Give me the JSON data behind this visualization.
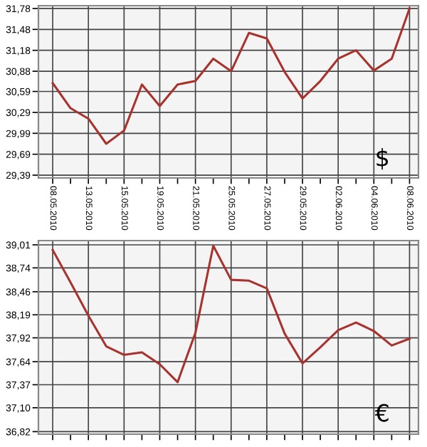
{
  "chart_data": [
    {
      "type": "line",
      "categories": [
        "08.05.2010",
        null,
        "13.05.2010",
        null,
        "15.05.2010",
        null,
        "19.05.2010",
        null,
        "21.05.2010",
        null,
        "25.05.2010",
        null,
        "27.05.2010",
        null,
        "29.05.2010",
        null,
        "02.06.2010",
        null,
        "04.06.2010",
        null,
        "08.06.2010"
      ],
      "series": [
        {
          "color": "#a8322d",
          "values": [
            30.71,
            30.35,
            30.2,
            29.84,
            30.03,
            30.69,
            30.38,
            30.69,
            30.74,
            31.06,
            30.88,
            31.43,
            31.35,
            30.87,
            30.49,
            30.74,
            31.06,
            31.18,
            30.89,
            31.06,
            31.78
          ]
        }
      ],
      "ylim": [
        29.35,
        31.82
      ],
      "yticks": [
        {
          "value": 29.39,
          "label": "29,39"
        },
        {
          "value": 29.69,
          "label": "29,69"
        },
        {
          "value": 29.99,
          "label": "29,99"
        },
        {
          "value": 30.29,
          "label": "30,29"
        },
        {
          "value": 30.59,
          "label": "30,59"
        },
        {
          "value": 30.88,
          "label": "30,88"
        },
        {
          "value": 31.18,
          "label": "31,18"
        },
        {
          "value": 31.48,
          "label": "31,48"
        },
        {
          "value": 31.78,
          "label": "31,78"
        }
      ],
      "grid": true,
      "annotations": [
        "$"
      ]
    },
    {
      "type": "line",
      "categories": [
        "08.05.2010",
        null,
        "13.05.2010",
        null,
        "15.05.2010",
        null,
        "19.05.2010",
        null,
        "21.05.2010",
        null,
        "25.05.2010",
        null,
        "27.05.2010",
        null,
        "29.05.2010",
        null,
        "02.06.2010",
        null,
        "04.06.2010",
        null,
        "08.06.2010"
      ],
      "series": [
        {
          "color": "#a8322d",
          "values": [
            38.95,
            38.57,
            38.18,
            37.82,
            37.72,
            37.75,
            37.61,
            37.4,
            37.98,
            39.0,
            38.6,
            38.59,
            38.5,
            37.97,
            37.62,
            37.81,
            38.01,
            38.1,
            38.0,
            37.83,
            37.91
          ]
        }
      ],
      "ylim": [
        36.79,
        39.06
      ],
      "yticks": [
        {
          "value": 36.82,
          "label": "36,82"
        },
        {
          "value": 37.1,
          "label": "37,10"
        },
        {
          "value": 37.37,
          "label": "37,37"
        },
        {
          "value": 37.64,
          "label": "37,64"
        },
        {
          "value": 37.92,
          "label": "37,92"
        },
        {
          "value": 38.19,
          "label": "38,19"
        },
        {
          "value": 38.46,
          "label": "38,46"
        },
        {
          "value": 38.74,
          "label": "38,74"
        },
        {
          "value": 39.01,
          "label": "39,01"
        }
      ],
      "grid": true,
      "tick_labels": "y",
      "annotations": [
        "€"
      ]
    }
  ]
}
